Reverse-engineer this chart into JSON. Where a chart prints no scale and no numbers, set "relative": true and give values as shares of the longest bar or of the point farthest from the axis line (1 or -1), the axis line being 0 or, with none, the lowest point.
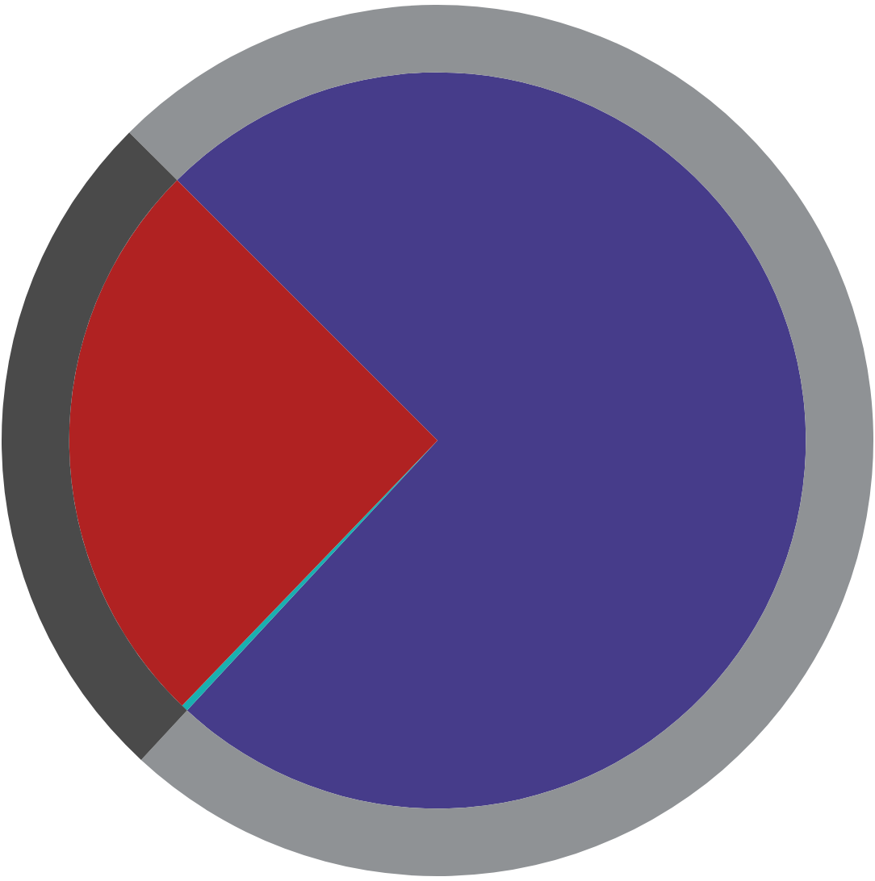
{
  "chart_data": {
    "type": "pie",
    "relative": true,
    "series": [
      {
        "type": "pie",
        "values": [
          74.4,
          0.3,
          25.3
        ],
        "colors": [
          "#463c8a",
          "#1ab0b0",
          "#b02222"
        ]
      },
      {
        "type": "donut",
        "values": [
          74.4,
          25.6
        ],
        "colors": [
          "#8f9295",
          "#4a4a4a"
        ]
      }
    ]
  }
}
